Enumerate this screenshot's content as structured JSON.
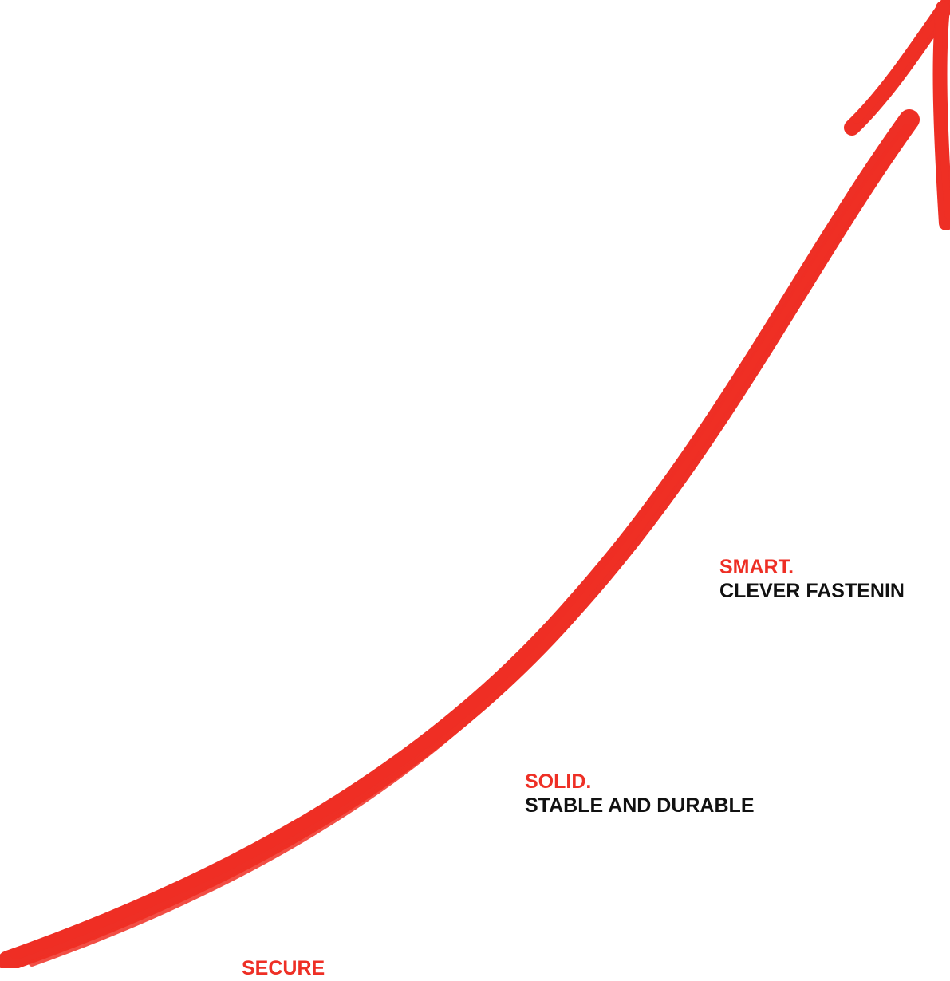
{
  "colors": {
    "accent": "#ee2f25",
    "text": "#111111",
    "background": "#ffffff"
  },
  "graphic": {
    "icon": "brush-stroke-rising-arrow-icon"
  },
  "callouts": [
    {
      "heading": "SMART.",
      "subtext": "CLEVER FASTENIN"
    },
    {
      "heading": "SOLID.",
      "subtext": "STABLE AND DURABLE"
    },
    {
      "heading": "SECURE",
      "subtext": ""
    }
  ]
}
